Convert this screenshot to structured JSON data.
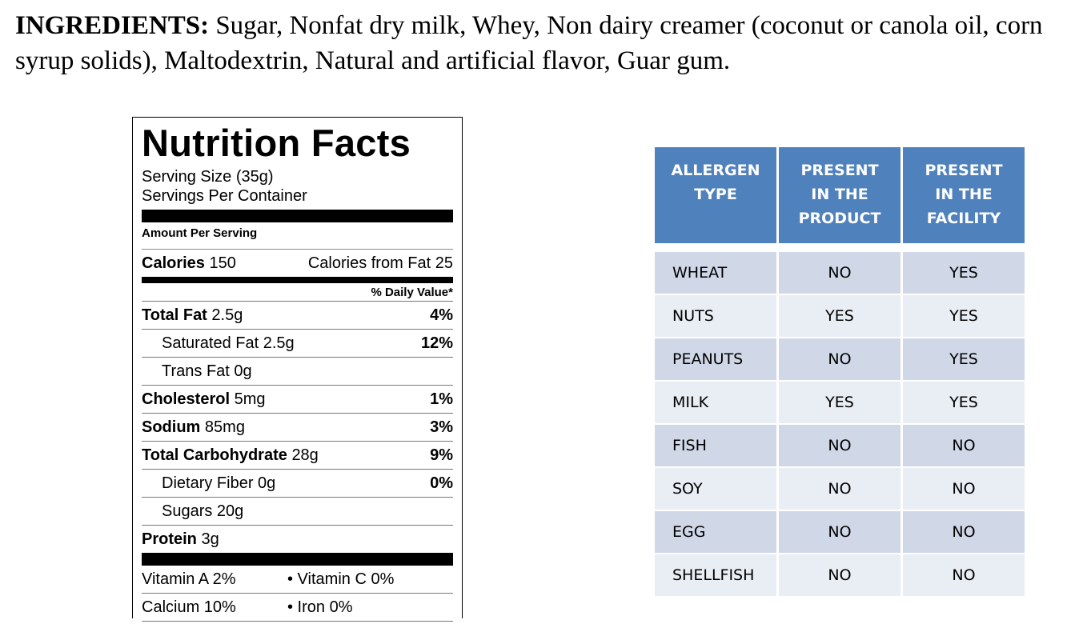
{
  "ingredients": {
    "label": "INGREDIENTS:",
    "text": " Sugar, Nonfat dry milk, Whey, Non dairy creamer (coconut or canola oil, corn syrup solids), Maltodextrin, Natural and artificial flavor, Guar gum."
  },
  "nutrition": {
    "title": "Nutrition Facts",
    "serving_size": "Serving Size  (35g)",
    "servings_per_container": "Servings Per Container",
    "amount_per_serving": "Amount Per Serving",
    "calories_label": "Calories",
    "calories": "150",
    "calories_from_fat": "Calories from Fat 25",
    "daily_value": "% Daily Value*",
    "rows": [
      {
        "bold": "Total Fat",
        "value": "2.5g",
        "pct": "4%"
      },
      {
        "bold": "",
        "value": "Saturated Fat 2.5g",
        "pct": "12%"
      },
      {
        "bold": "",
        "value": "Trans Fat 0g",
        "pct": ""
      },
      {
        "bold": "Cholesterol",
        "value": "5mg",
        "pct": "1%"
      },
      {
        "bold": "Sodium",
        "value": "85mg",
        "pct": "3%"
      },
      {
        "bold": "Total Carbohydrate",
        "value": "28g",
        "pct": "9%"
      },
      {
        "bold": "",
        "value": "Dietary Fiber 0g",
        "pct": "0%"
      },
      {
        "bold": "",
        "value": "Sugars 20g",
        "pct": ""
      },
      {
        "bold": "Protein",
        "value": "3g",
        "pct": ""
      }
    ],
    "vitamins": [
      [
        "Vitamin A 2%",
        "•  Vitamin C 0%"
      ],
      [
        "Calcium 10%",
        "•  Iron 0%"
      ]
    ]
  },
  "allergens": {
    "headers": [
      [
        "ALLERGEN",
        "TYPE"
      ],
      [
        "PRESENT",
        "IN THE",
        "PRODUCT"
      ],
      [
        "PRESENT",
        "IN THE",
        "FACILITY"
      ]
    ],
    "rows": [
      [
        "WHEAT",
        "NO",
        "YES"
      ],
      [
        "NUTS",
        "YES",
        "YES"
      ],
      [
        "PEANUTS",
        "NO",
        "YES"
      ],
      [
        "MILK",
        "YES",
        "YES"
      ],
      [
        "FISH",
        "NO",
        "NO"
      ],
      [
        "SOY",
        "NO",
        "NO"
      ],
      [
        "EGG",
        "NO",
        "NO"
      ],
      [
        "SHELLFISH",
        "NO",
        "NO"
      ]
    ],
    "colors": {
      "header": "#4f81bd",
      "row_odd": "#d0d8e8",
      "row_even": "#e9edf4"
    }
  }
}
